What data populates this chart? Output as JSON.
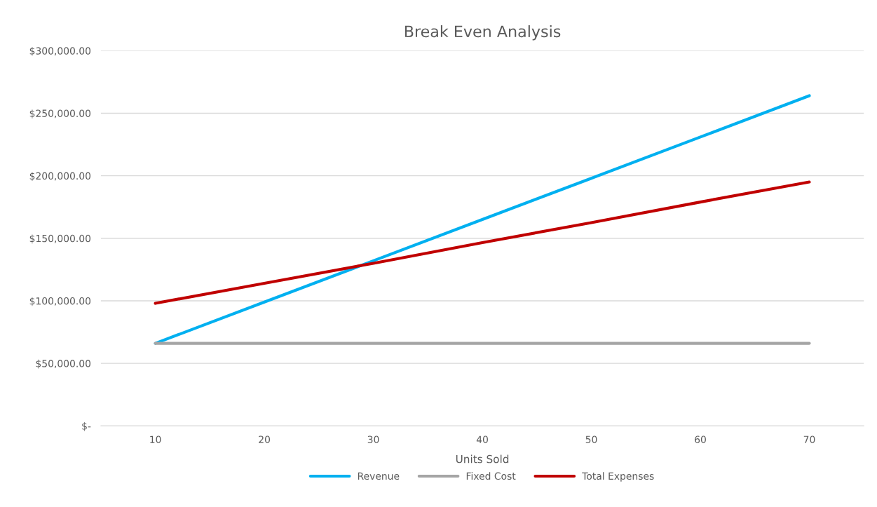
{
  "chart_data": {
    "type": "line",
    "title": "Break Even Analysis",
    "xlabel": "Units Sold",
    "categories": [
      "10",
      "20",
      "30",
      "40",
      "50",
      "60",
      "70"
    ],
    "series": [
      {
        "name": "Revenue",
        "color": "#00b0f0",
        "values": [
          66000,
          99000,
          132000,
          165000,
          198000,
          231000,
          264000
        ]
      },
      {
        "name": "Fixed Cost",
        "color": "#a5a5a5",
        "values": [
          66000,
          66000,
          66000,
          66000,
          66000,
          66000,
          66000
        ]
      },
      {
        "name": "Total Expenses",
        "color": "#c00000",
        "values": [
          98000,
          114000,
          130000,
          146500,
          162500,
          179000,
          195000
        ]
      }
    ],
    "ylim": [
      0,
      300000
    ],
    "yticks": [
      {
        "value": 0,
        "label": "$-"
      },
      {
        "value": 50000,
        "label": "$50,000.00"
      },
      {
        "value": 100000,
        "label": "$100,000.00"
      },
      {
        "value": 150000,
        "label": "$150,000.00"
      },
      {
        "value": 200000,
        "label": "$200,000.00"
      },
      {
        "value": 250000,
        "label": "$250,000.00"
      },
      {
        "value": 300000,
        "label": "$300,000.00"
      }
    ],
    "grid": "y",
    "legend": "bottom",
    "marker": "none",
    "line_style": "solid"
  }
}
